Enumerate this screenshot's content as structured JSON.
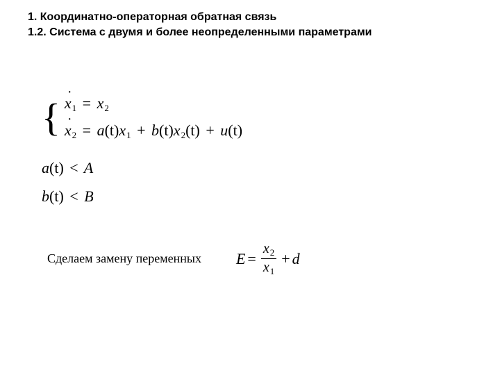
{
  "heading": {
    "line1": "1. Координатно-операторная обратная связь",
    "line2": "1.2. Система с двумя и более неопределенными параметрами"
  },
  "system": {
    "x1_dot_lhs": "x",
    "x1_dot_sub": "1",
    "eq1_rhs_var": "x",
    "eq1_rhs_sub": "2",
    "x2_dot_lhs": "x",
    "x2_dot_sub": "2",
    "a": "a",
    "t1": "(t)",
    "x1": "x",
    "x1_sub": "1",
    "plus1": "+",
    "b": "b",
    "t2": "(t)",
    "x2": "x",
    "x2_sub": "2",
    "t3": "(t)",
    "plus2": "+",
    "u": "u",
    "t4": "(t)"
  },
  "constraints": {
    "a_lhs": "a",
    "a_arg": "(t)",
    "lt1": "<",
    "A": "A",
    "b_lhs": "b",
    "b_arg": "(t)",
    "lt2": "<",
    "B": "B"
  },
  "substitution": {
    "label": "Сделаем замену переменных",
    "E": "E",
    "eq": "=",
    "num_var": "x",
    "num_sub": "2",
    "den_var": "x",
    "den_sub": "1",
    "plus": "+",
    "d": "d"
  }
}
